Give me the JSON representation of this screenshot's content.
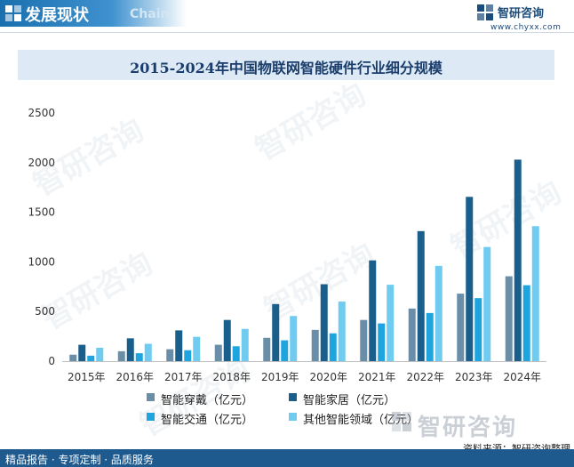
{
  "header": {
    "title": "发展现状",
    "title_en": "Chain"
  },
  "brand": {
    "name": "智研咨询",
    "url": "www.chyxx.com",
    "watermark": "智研咨询"
  },
  "footer": {
    "left": "精品报告 · 专项定制 · 品质服务",
    "source": "资料来源：智研咨询整理"
  },
  "colors": {
    "header_blue": "#1a6fae",
    "title_band": "#ddeaf6",
    "footer_blue": "#1f5a8f"
  },
  "chart_data": {
    "type": "bar",
    "title": "2015-2024年中国物联网智能硬件行业细分规模",
    "xlabel": "",
    "ylabel": "",
    "ylim": [
      0,
      2500
    ],
    "yticks": [
      0,
      500,
      1000,
      1500,
      2000,
      2500
    ],
    "grid": false,
    "legend_position": "bottom",
    "categories": [
      "2015年",
      "2016年",
      "2017年",
      "2018年",
      "2019年",
      "2020年",
      "2021年",
      "2022年",
      "2023年",
      "2024年"
    ],
    "series": [
      {
        "name": "智能穿戴（亿元）",
        "color": "#6b8ea8",
        "values": [
          65,
          100,
          120,
          165,
          235,
          315,
          415,
          530,
          680,
          855
        ]
      },
      {
        "name": "智能家居（亿元）",
        "color": "#1a5f8c",
        "values": [
          165,
          230,
          310,
          415,
          575,
          775,
          1015,
          1310,
          1655,
          2030
        ]
      },
      {
        "name": "智能交通（亿元）",
        "color": "#1ea5e0",
        "values": [
          55,
          80,
          110,
          150,
          210,
          280,
          380,
          485,
          635,
          765
        ]
      },
      {
        "name": "其他智能领域（亿元）",
        "color": "#6fccf0",
        "values": [
          135,
          175,
          245,
          325,
          455,
          600,
          770,
          960,
          1150,
          1360
        ]
      }
    ]
  }
}
